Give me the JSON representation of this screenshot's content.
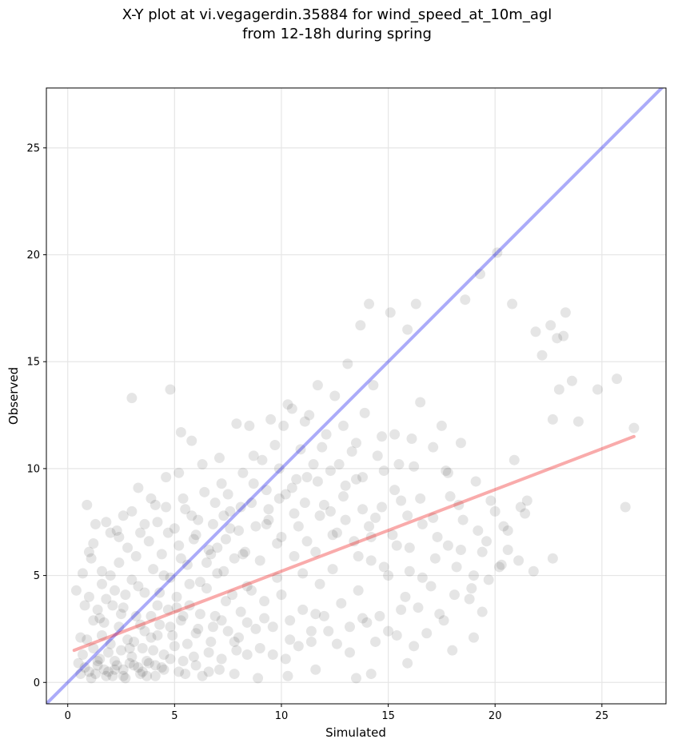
{
  "chart_data": {
    "type": "scatter",
    "title_lines": [
      "X-Y plot at vi.vegagerdin.35884 for wind_speed_at_10m_agl",
      "from 12-18h during spring"
    ],
    "xlabel": "Simulated",
    "ylabel": "Observed",
    "xlim": [
      -1,
      28
    ],
    "ylim": [
      -1,
      27.8
    ],
    "xticks": [
      0,
      5,
      10,
      15,
      20,
      25
    ],
    "yticks": [
      0,
      5,
      10,
      15,
      20,
      25
    ],
    "grid": true,
    "legend": "none",
    "point_color": "#000000",
    "point_alpha": 0.1,
    "reference_lines": [
      {
        "kind": "identity (1:1)",
        "color": "#0000ee",
        "x": [
          -1,
          28
        ],
        "y": [
          -1,
          28
        ]
      },
      {
        "kind": "linear fit",
        "color": "#ee0000",
        "x": [
          0.3,
          26.5
        ],
        "y": [
          1.5,
          11.5
        ]
      }
    ],
    "points": [
      [
        1.0,
        0.5
      ],
      [
        1.4,
        0.8
      ],
      [
        1.8,
        0.3
      ],
      [
        2.2,
        1.0
      ],
      [
        2.6,
        0.6
      ],
      [
        3.0,
        1.2
      ],
      [
        3.4,
        0.4
      ],
      [
        3.8,
        0.9
      ],
      [
        1.2,
        1.6
      ],
      [
        1.6,
        2.2
      ],
      [
        2.0,
        1.8
      ],
      [
        2.4,
        2.6
      ],
      [
        2.8,
        2.0
      ],
      [
        3.2,
        3.1
      ],
      [
        3.6,
        2.4
      ],
      [
        4.0,
        1.5
      ],
      [
        4.4,
        0.7
      ],
      [
        4.8,
        1.1
      ],
      [
        5.2,
        0.5
      ],
      [
        5.6,
        1.8
      ],
      [
        0.5,
        0.9
      ],
      [
        0.7,
        1.3
      ],
      [
        0.9,
        2.0
      ],
      [
        1.1,
        0.2
      ],
      [
        1.3,
        0.4
      ],
      [
        1.5,
        1.1
      ],
      [
        1.7,
        0.6
      ],
      [
        1.9,
        1.4
      ],
      [
        2.1,
        0.3
      ],
      [
        2.3,
        0.8
      ],
      [
        2.5,
        1.5
      ],
      [
        2.7,
        0.2
      ],
      [
        2.9,
        0.9
      ],
      [
        3.1,
        1.9
      ],
      [
        3.3,
        0.7
      ],
      [
        3.5,
        1.6
      ],
      [
        3.7,
        0.3
      ],
      [
        3.9,
        2.1
      ],
      [
        4.1,
        0.8
      ],
      [
        4.3,
        2.7
      ],
      [
        4.5,
        1.3
      ],
      [
        4.7,
        3.4
      ],
      [
        4.9,
        2.2
      ],
      [
        5.1,
        4.0
      ],
      [
        5.3,
        2.9
      ],
      [
        5.5,
        0.4
      ],
      [
        5.7,
        3.6
      ],
      [
        5.9,
        1.2
      ],
      [
        6.1,
        2.5
      ],
      [
        6.3,
        0.3
      ],
      [
        6.5,
        4.4
      ],
      [
        6.7,
        1.9
      ],
      [
        6.9,
        3.1
      ],
      [
        7.1,
        0.6
      ],
      [
        7.3,
        5.2
      ],
      [
        7.5,
        2.4
      ],
      [
        7.7,
        4.1
      ],
      [
        7.9,
        1.5
      ],
      [
        8.1,
        3.3
      ],
      [
        8.3,
        6.1
      ],
      [
        0.8,
        3.6
      ],
      [
        1.0,
        4.0
      ],
      [
        1.2,
        2.9
      ],
      [
        1.4,
        3.4
      ],
      [
        1.6,
        4.6
      ],
      [
        1.8,
        3.9
      ],
      [
        2.0,
        5.0
      ],
      [
        2.2,
        4.3
      ],
      [
        2.4,
        5.6
      ],
      [
        2.6,
        3.5
      ],
      [
        2.8,
        6.3
      ],
      [
        3.0,
        4.8
      ],
      [
        3.2,
        5.9
      ],
      [
        3.4,
        7.0
      ],
      [
        3.6,
        4.2
      ],
      [
        3.8,
        6.6
      ],
      [
        4.0,
        5.3
      ],
      [
        4.2,
        7.5
      ],
      [
        4.4,
        6.0
      ],
      [
        4.6,
        8.2
      ],
      [
        4.8,
        4.9
      ],
      [
        5.0,
        7.2
      ],
      [
        5.2,
        6.4
      ],
      [
        5.4,
        8.6
      ],
      [
        5.6,
        5.5
      ],
      [
        5.8,
        7.8
      ],
      [
        6.0,
        6.9
      ],
      [
        6.2,
        4.7
      ],
      [
        6.4,
        8.9
      ],
      [
        6.6,
        6.2
      ],
      [
        6.8,
        7.4
      ],
      [
        7.0,
        5.1
      ],
      [
        7.2,
        9.3
      ],
      [
        7.4,
        6.7
      ],
      [
        7.6,
        8.0
      ],
      [
        7.8,
        5.8
      ],
      [
        8.0,
        7.1
      ],
      [
        8.2,
        9.8
      ],
      [
        8.4,
        4.5
      ],
      [
        8.6,
        8.4
      ],
      [
        1.0,
        6.1
      ],
      [
        1.3,
        7.4
      ],
      [
        0.9,
        8.3
      ],
      [
        1.8,
        7.5
      ],
      [
        2.4,
        6.8
      ],
      [
        3.0,
        8.0
      ],
      [
        3.3,
        9.1
      ],
      [
        3.9,
        8.6
      ],
      [
        4.6,
        9.6
      ],
      [
        5.2,
        9.8
      ],
      [
        3.0,
        13.3
      ],
      [
        4.8,
        13.7
      ],
      [
        5.3,
        11.7
      ],
      [
        5.8,
        11.3
      ],
      [
        6.3,
        10.2
      ],
      [
        7.1,
        10.5
      ],
      [
        2.0,
        7.0
      ],
      [
        2.6,
        7.8
      ],
      [
        1.6,
        5.2
      ],
      [
        1.1,
        5.8
      ],
      [
        8.8,
        2.5
      ],
      [
        9.0,
        5.7
      ],
      [
        9.2,
        3.8
      ],
      [
        9.4,
        7.6
      ],
      [
        9.6,
        1.3
      ],
      [
        9.8,
        6.5
      ],
      [
        10.0,
        4.1
      ],
      [
        10.2,
        8.8
      ],
      [
        10.4,
        2.9
      ],
      [
        10.6,
        5.9
      ],
      [
        10.8,
        7.3
      ],
      [
        11.0,
        3.4
      ],
      [
        11.2,
        9.6
      ],
      [
        11.4,
        1.9
      ],
      [
        11.6,
        6.1
      ],
      [
        11.8,
        4.6
      ],
      [
        12.0,
        8.3
      ],
      [
        12.2,
        2.4
      ],
      [
        12.4,
        5.3
      ],
      [
        12.6,
        7.0
      ],
      [
        12.8,
        3.7
      ],
      [
        13.0,
        9.2
      ],
      [
        13.2,
        1.4
      ],
      [
        13.4,
        6.6
      ],
      [
        13.6,
        4.3
      ],
      [
        13.8,
        8.1
      ],
      [
        14.0,
        2.8
      ],
      [
        14.2,
        5.7
      ],
      [
        14.4,
        7.7
      ],
      [
        14.6,
        3.1
      ],
      [
        14.8,
        9.9
      ],
      [
        15.0,
        5.0
      ],
      [
        15.2,
        6.9
      ],
      [
        15.4,
        2.2
      ],
      [
        15.6,
        8.5
      ],
      [
        15.8,
        4.0
      ],
      [
        16.0,
        6.3
      ],
      [
        16.2,
        10.1
      ],
      [
        16.4,
        3.5
      ],
      [
        16.6,
        7.4
      ],
      [
        9.1,
        10.4
      ],
      [
        9.7,
        11.1
      ],
      [
        10.1,
        12.0
      ],
      [
        10.5,
        12.8
      ],
      [
        10.9,
        10.9
      ],
      [
        11.3,
        12.5
      ],
      [
        11.7,
        13.9
      ],
      [
        12.1,
        11.6
      ],
      [
        12.5,
        13.4
      ],
      [
        12.9,
        12.0
      ],
      [
        13.1,
        14.9
      ],
      [
        13.5,
        11.2
      ],
      [
        13.9,
        12.6
      ],
      [
        14.3,
        13.9
      ],
      [
        14.1,
        17.7
      ],
      [
        13.7,
        16.7
      ],
      [
        15.1,
        17.3
      ],
      [
        15.9,
        16.5
      ],
      [
        16.3,
        17.7
      ],
      [
        16.5,
        13.1
      ],
      [
        17.0,
        4.5
      ],
      [
        17.3,
        6.8
      ],
      [
        17.6,
        2.9
      ],
      [
        17.9,
        8.7
      ],
      [
        18.2,
        5.4
      ],
      [
        18.5,
        7.6
      ],
      [
        18.8,
        3.9
      ],
      [
        19.1,
        9.4
      ],
      [
        19.4,
        6.1
      ],
      [
        19.7,
        4.8
      ],
      [
        20.0,
        8.0
      ],
      [
        20.3,
        5.5
      ],
      [
        20.6,
        7.1
      ],
      [
        20.9,
        10.4
      ],
      [
        21.2,
        8.2
      ],
      [
        21.5,
        8.5
      ],
      [
        17.1,
        11.0
      ],
      [
        17.5,
        12.0
      ],
      [
        18.4,
        11.2
      ],
      [
        17.8,
        9.8
      ],
      [
        18.6,
        17.9
      ],
      [
        19.3,
        19.1
      ],
      [
        20.1,
        20.1
      ],
      [
        20.8,
        17.7
      ],
      [
        21.9,
        16.4
      ],
      [
        22.2,
        15.3
      ],
      [
        22.6,
        16.7
      ],
      [
        22.9,
        16.1
      ],
      [
        23.2,
        16.2
      ],
      [
        23.3,
        17.3
      ],
      [
        23.0,
        13.7
      ],
      [
        23.6,
        14.1
      ],
      [
        23.9,
        12.2
      ],
      [
        22.7,
        12.3
      ],
      [
        24.8,
        13.7
      ],
      [
        25.7,
        14.2
      ],
      [
        26.5,
        11.9
      ],
      [
        26.1,
        8.2
      ],
      [
        22.7,
        5.8
      ],
      [
        21.8,
        5.2
      ],
      [
        20.2,
        5.4
      ],
      [
        19.0,
        2.1
      ],
      [
        19.4,
        3.3
      ],
      [
        18.0,
        1.5
      ],
      [
        15.9,
        0.9
      ],
      [
        14.2,
        0.4
      ],
      [
        13.5,
        0.2
      ],
      [
        11.6,
        0.6
      ],
      [
        10.3,
        0.3
      ],
      [
        8.9,
        0.2
      ],
      [
        9.3,
        9.0
      ],
      [
        8.7,
        10.6
      ],
      [
        7.9,
        12.1
      ],
      [
        8.5,
        12.0
      ],
      [
        9.5,
        12.3
      ],
      [
        10.3,
        13.0
      ],
      [
        11.1,
        12.2
      ],
      [
        11.9,
        11.0
      ],
      [
        12.7,
        10.2
      ],
      [
        13.3,
        10.8
      ],
      [
        14.7,
        11.5
      ],
      [
        15.3,
        11.6
      ],
      [
        16.1,
        11.4
      ],
      [
        15.5,
        10.2
      ],
      [
        14.5,
        10.6
      ],
      [
        13.8,
        9.6
      ],
      [
        12.3,
        9.9
      ],
      [
        11.5,
        10.2
      ],
      [
        10.7,
        9.5
      ],
      [
        9.9,
        10.0
      ],
      [
        2.2,
        0.6
      ],
      [
        2.6,
        0.3
      ],
      [
        3.1,
        0.8
      ],
      [
        3.5,
        0.5
      ],
      [
        1.4,
        1.0
      ],
      [
        0.6,
        0.4
      ],
      [
        0.8,
        0.7
      ],
      [
        1.9,
        0.5
      ],
      [
        2.9,
        1.6
      ],
      [
        3.7,
        1.0
      ],
      [
        4.1,
        0.3
      ],
      [
        4.5,
        0.6
      ],
      [
        4.2,
        2.2
      ],
      [
        5.0,
        1.7
      ],
      [
        5.4,
        1.0
      ],
      [
        6.0,
        0.8
      ],
      [
        6.6,
        0.5
      ],
      [
        7.2,
        1.1
      ],
      [
        7.8,
        0.4
      ],
      [
        8.4,
        1.3
      ],
      [
        6.2,
        3.2
      ],
      [
        6.8,
        2.6
      ],
      [
        7.4,
        3.8
      ],
      [
        8.0,
        2.1
      ],
      [
        8.6,
        4.3
      ],
      [
        9.2,
        3.0
      ],
      [
        9.8,
        4.9
      ],
      [
        10.4,
        2.0
      ],
      [
        11.0,
        5.1
      ],
      [
        11.6,
        3.2
      ],
      [
        3.4,
        2.7
      ],
      [
        2.5,
        3.2
      ],
      [
        1.7,
        2.8
      ],
      [
        4.3,
        4.2
      ],
      [
        5.1,
        3.5
      ],
      [
        5.7,
        4.6
      ],
      [
        6.5,
        5.6
      ],
      [
        7.0,
        6.3
      ],
      [
        7.6,
        7.2
      ],
      [
        8.2,
        6.0
      ],
      [
        8.8,
        7.3
      ],
      [
        9.4,
        8.1
      ],
      [
        10.0,
        6.8
      ],
      [
        10.6,
        7.9
      ],
      [
        11.2,
        6.6
      ],
      [
        11.8,
        7.8
      ],
      [
        12.4,
        6.9
      ],
      [
        13.0,
        7.6
      ],
      [
        13.6,
        5.9
      ],
      [
        14.2,
        6.8
      ],
      [
        14.8,
        5.4
      ],
      [
        15.4,
        6.4
      ],
      [
        16.0,
        5.2
      ],
      [
        16.6,
        4.9
      ],
      [
        17.2,
        5.8
      ],
      [
        17.8,
        6.4
      ],
      [
        18.4,
        6.2
      ],
      [
        19.0,
        5.0
      ],
      [
        19.6,
        6.6
      ],
      [
        20.4,
        7.3
      ],
      [
        1.5,
        3.0
      ],
      [
        2.1,
        3.6
      ],
      [
        2.7,
        4.1
      ],
      [
        3.3,
        4.5
      ],
      [
        3.9,
        3.1
      ],
      [
        4.5,
        5.0
      ],
      [
        5.3,
        5.8
      ],
      [
        5.9,
        6.7
      ],
      [
        6.7,
        6.0
      ],
      [
        7.3,
        7.8
      ],
      [
        0.4,
        4.3
      ],
      [
        0.6,
        2.1
      ],
      [
        0.7,
        5.1
      ],
      [
        1.2,
        6.5
      ],
      [
        2.3,
        7.1
      ],
      [
        3.6,
        7.4
      ],
      [
        4.1,
        8.3
      ],
      [
        4.7,
        7.0
      ],
      [
        5.5,
        8.1
      ],
      [
        6.1,
        7.6
      ],
      [
        6.9,
        8.4
      ],
      [
        7.5,
        8.8
      ],
      [
        8.1,
        8.2
      ],
      [
        8.7,
        9.3
      ],
      [
        9.3,
        7.4
      ],
      [
        9.9,
        8.6
      ],
      [
        10.5,
        9.1
      ],
      [
        11.1,
        8.4
      ],
      [
        11.7,
        9.4
      ],
      [
        12.3,
        8.0
      ],
      [
        12.9,
        8.7
      ],
      [
        13.5,
        9.5
      ],
      [
        14.1,
        7.3
      ],
      [
        14.7,
        8.2
      ],
      [
        15.3,
        9.0
      ],
      [
        15.9,
        7.8
      ],
      [
        16.5,
        8.6
      ],
      [
        17.1,
        7.7
      ],
      [
        17.7,
        9.9
      ],
      [
        18.3,
        8.3
      ],
      [
        19.2,
        7.1
      ],
      [
        19.8,
        8.5
      ],
      [
        20.6,
        6.2
      ],
      [
        21.4,
        7.9
      ],
      [
        21.1,
        5.7
      ],
      [
        18.9,
        4.4
      ],
      [
        18.1,
        4.1
      ],
      [
        17.4,
        3.2
      ],
      [
        16.8,
        2.3
      ],
      [
        16.2,
        1.7
      ],
      [
        15.6,
        3.4
      ],
      [
        15.0,
        2.4
      ],
      [
        14.4,
        1.9
      ],
      [
        13.8,
        3.0
      ],
      [
        13.2,
        2.6
      ],
      [
        12.6,
        1.8
      ],
      [
        12.0,
        3.1
      ],
      [
        11.4,
        2.4
      ],
      [
        10.8,
        1.7
      ],
      [
        10.2,
        1.1
      ],
      [
        9.6,
        2.6
      ],
      [
        9.0,
        1.6
      ],
      [
        8.4,
        2.8
      ],
      [
        7.8,
        1.9
      ],
      [
        7.2,
        2.9
      ],
      [
        6.6,
        1.4
      ],
      [
        6.0,
        2.3
      ],
      [
        5.4,
        3.1
      ],
      [
        4.8,
        2.6
      ],
      [
        4.2,
        3.6
      ]
    ]
  }
}
